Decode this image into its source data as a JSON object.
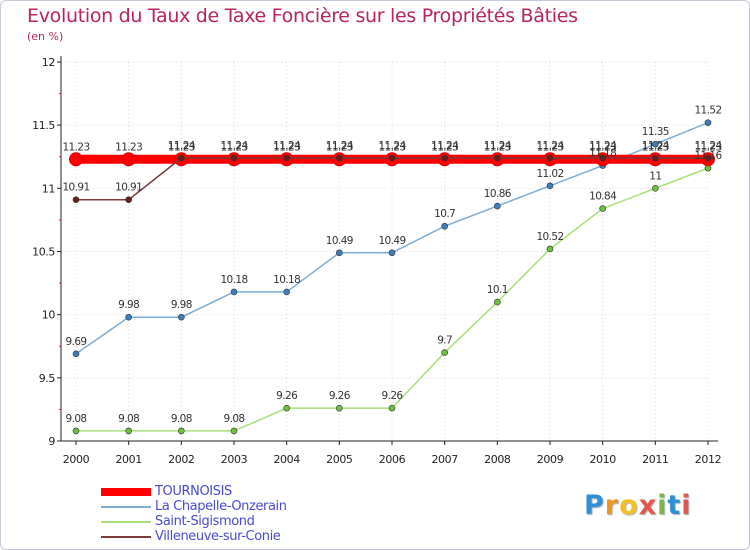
{
  "header": {
    "title": "Evolution du Taux de Taxe Foncière sur les Propriétés Bâties",
    "unit": "(en %)"
  },
  "brand": {
    "letters": [
      "P",
      "r",
      "o",
      "x",
      "i",
      "t",
      "i"
    ],
    "colors": [
      "#2f8fd6",
      "#f29422",
      "#f2c022",
      "#e2574c",
      "#7ab648",
      "#2f8fd6",
      "#e2574c"
    ]
  },
  "chart_data": {
    "type": "line",
    "title": "Evolution du Taux de Taxe Foncière sur les Propriétés Bâties",
    "ylabel": "(en %)",
    "xlabel": "",
    "categories": [
      "2000",
      "2001",
      "2002",
      "2003",
      "2004",
      "2005",
      "2006",
      "2007",
      "2008",
      "2009",
      "2010",
      "2011",
      "2012"
    ],
    "ylim": [
      9,
      12
    ],
    "yticks": [
      9,
      9.5,
      10,
      10.5,
      11,
      11.5,
      12
    ],
    "ytick_labels": [
      "9",
      "9.5",
      "10",
      "10.5",
      "11",
      "11.5",
      "12"
    ],
    "series": [
      {
        "name": "TOURNOISIS",
        "color": "#ff0000",
        "marker_color": "#ff0000",
        "thick": true,
        "values": [
          11.23,
          11.23,
          11.23,
          11.23,
          11.23,
          11.23,
          11.23,
          11.23,
          11.23,
          11.23,
          11.23,
          11.23,
          11.23
        ],
        "labels": [
          "11.23",
          "11.23",
          "11.23",
          "11.23",
          "11.23",
          "11.23",
          "11.23",
          "11.23",
          "11.23",
          "11.23",
          "11.23",
          "11.23",
          "11.23"
        ]
      },
      {
        "name": "La Chapelle-Onzerain",
        "color": "#7aaed6",
        "marker_color": "#3b7fc0",
        "thick": false,
        "values": [
          9.69,
          9.98,
          9.98,
          10.18,
          10.18,
          10.49,
          10.49,
          10.7,
          10.86,
          11.02,
          11.18,
          11.35,
          11.52
        ],
        "labels": [
          "9.69",
          "9.98",
          "9.98",
          "10.18",
          "10.18",
          "10.49",
          "10.49",
          "10.7",
          "10.86",
          "11.02",
          "11.18",
          "11.35",
          "11.52"
        ]
      },
      {
        "name": "Saint-Sigismond",
        "color": "#a8e07a",
        "marker_color": "#6cc23c",
        "thick": false,
        "values": [
          9.08,
          9.08,
          9.08,
          9.08,
          9.26,
          9.26,
          9.26,
          9.7,
          10.1,
          10.52,
          10.84,
          11,
          11.16
        ],
        "labels": [
          "9.08",
          "9.08",
          "9.08",
          "9.08",
          "9.26",
          "9.26",
          "9.26",
          "9.7",
          "10.1",
          "10.52",
          "10.84",
          "11",
          "11.16"
        ]
      },
      {
        "name": "Villeneuve-sur-Conie",
        "color": "#7a3a3a",
        "marker_color": "#6a1f1f",
        "thick": false,
        "values": [
          10.91,
          10.91,
          11.24,
          11.24,
          11.24,
          11.24,
          11.24,
          11.24,
          11.24,
          11.24,
          11.24,
          11.24,
          11.24
        ],
        "labels": [
          "10.91",
          "10.91",
          "11.24",
          "11.24",
          "11.24",
          "11.24",
          "11.24",
          "11.24",
          "11.24",
          "11.24",
          "11.24",
          "11.24",
          "11.24"
        ]
      }
    ]
  }
}
